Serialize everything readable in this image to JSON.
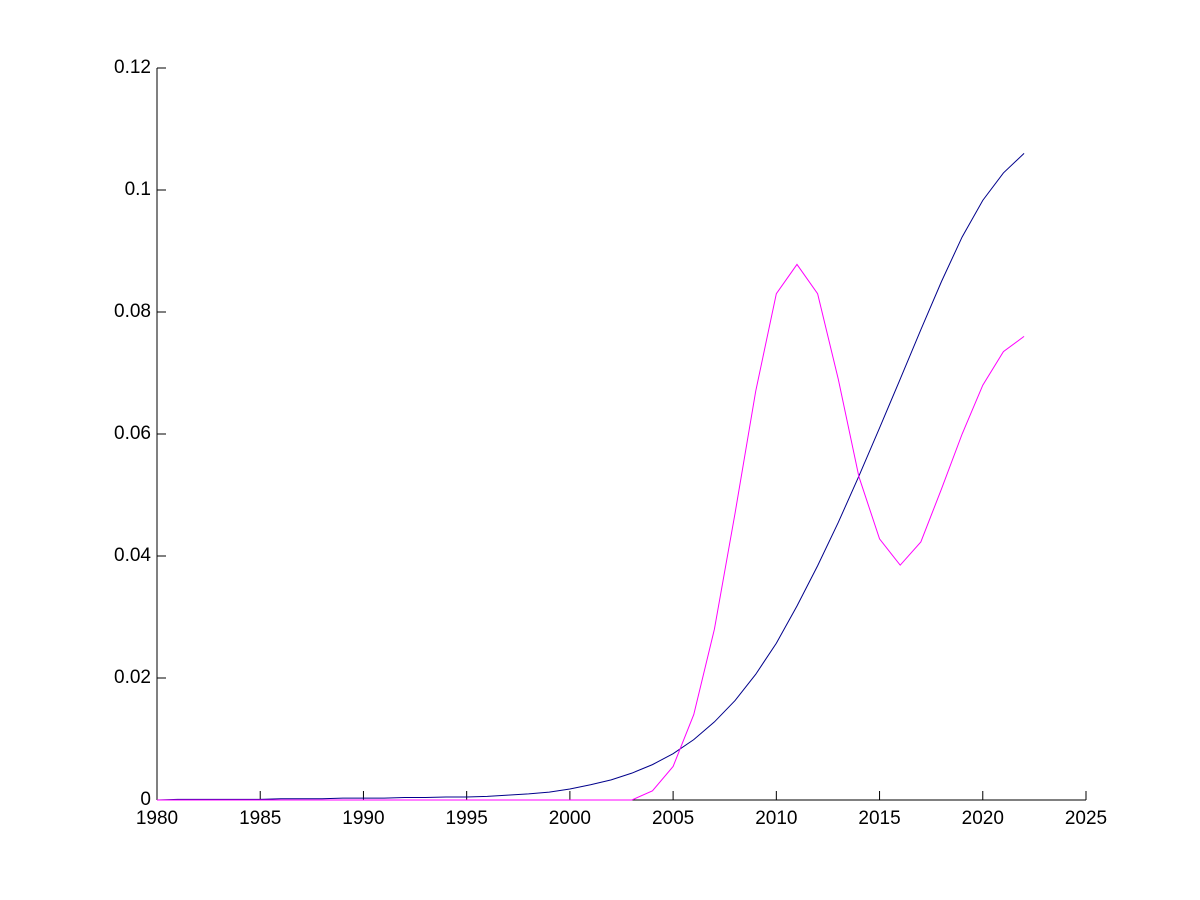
{
  "chart_data": {
    "type": "line",
    "x": [
      1980,
      1981,
      1982,
      1983,
      1984,
      1985,
      1986,
      1987,
      1988,
      1989,
      1990,
      1991,
      1992,
      1993,
      1994,
      1995,
      1996,
      1997,
      1998,
      1999,
      2000,
      2001,
      2002,
      2003,
      2004,
      2005,
      2006,
      2007,
      2008,
      2009,
      2010,
      2011,
      2012,
      2013,
      2014,
      2015,
      2016,
      2017,
      2018,
      2019,
      2020,
      2021,
      2022
    ],
    "series": [
      {
        "color": "#00008b",
        "values": [
          0,
          0.0001,
          0.0001,
          0.0001,
          0.0001,
          0.0001,
          0.0002,
          0.0002,
          0.0002,
          0.0003,
          0.0003,
          0.0003,
          0.0004,
          0.0004,
          0.0005,
          0.0005,
          0.0006,
          0.0008,
          0.001,
          0.0013,
          0.0018,
          0.0025,
          0.0033,
          0.0044,
          0.0058,
          0.0076,
          0.0099,
          0.0128,
          0.0163,
          0.0206,
          0.0257,
          0.0318,
          0.0384,
          0.0455,
          0.0531,
          0.061,
          0.069,
          0.0771,
          0.085,
          0.0923,
          0.0983,
          0.1028,
          0.106
        ]
      },
      {
        "color": "#ff00ff",
        "values": [
          0,
          0,
          0,
          0,
          0,
          0,
          0,
          0,
          0,
          0,
          0,
          0,
          0,
          0,
          0,
          0,
          0,
          0,
          0,
          0,
          0,
          0,
          0,
          0,
          0.0015,
          0.0055,
          0.014,
          0.028,
          0.047,
          0.067,
          0.083,
          0.0878,
          0.083,
          0.069,
          0.053,
          0.0428,
          0.0385,
          0.0423,
          0.051,
          0.06,
          0.068,
          0.0735,
          0.076
        ]
      }
    ],
    "xlim": [
      1980,
      2025
    ],
    "xticks": [
      1980,
      1985,
      1990,
      1995,
      2000,
      2005,
      2010,
      2015,
      2020,
      2025
    ],
    "ylim": [
      0,
      0.12
    ],
    "yticks": [
      0,
      0.02,
      0.04,
      0.06,
      0.08,
      0.1,
      0.12
    ],
    "grid": false
  }
}
